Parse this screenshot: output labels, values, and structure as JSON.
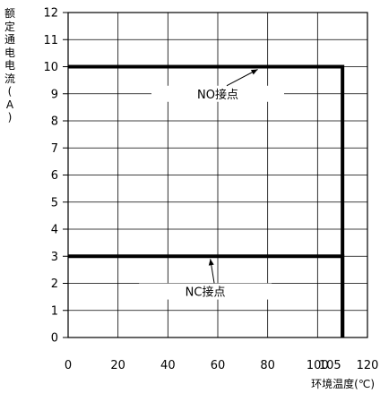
{
  "chart_data": {
    "type": "line",
    "xlabel": "环境温度(℃)",
    "ylabel": "额定通电电流(A)",
    "xlim": [
      0,
      120
    ],
    "ylim": [
      0,
      12
    ],
    "x_ticks": [
      "0",
      "20",
      "40",
      "60",
      "80",
      "100",
      "105",
      "120"
    ],
    "y_ticks": [
      "0",
      "1",
      "2",
      "3",
      "4",
      "5",
      "6",
      "7",
      "8",
      "9",
      "10",
      "11",
      "12"
    ],
    "grid": true,
    "series": [
      {
        "name": "NO接点",
        "x": [
          0,
          110,
          110
        ],
        "y": [
          10,
          10,
          0
        ]
      },
      {
        "name": "NC接点",
        "x": [
          0,
          110,
          110
        ],
        "y": [
          3,
          3,
          0
        ]
      }
    ],
    "annotations": [
      {
        "text": "NO接点",
        "label_x": 60,
        "label_y": 9,
        "arrow_to_x": 76,
        "arrow_to_y": 10
      },
      {
        "text": "NC接点",
        "label_x": 55,
        "label_y": 1.7,
        "arrow_to_x": 57,
        "arrow_to_y": 3
      }
    ]
  }
}
